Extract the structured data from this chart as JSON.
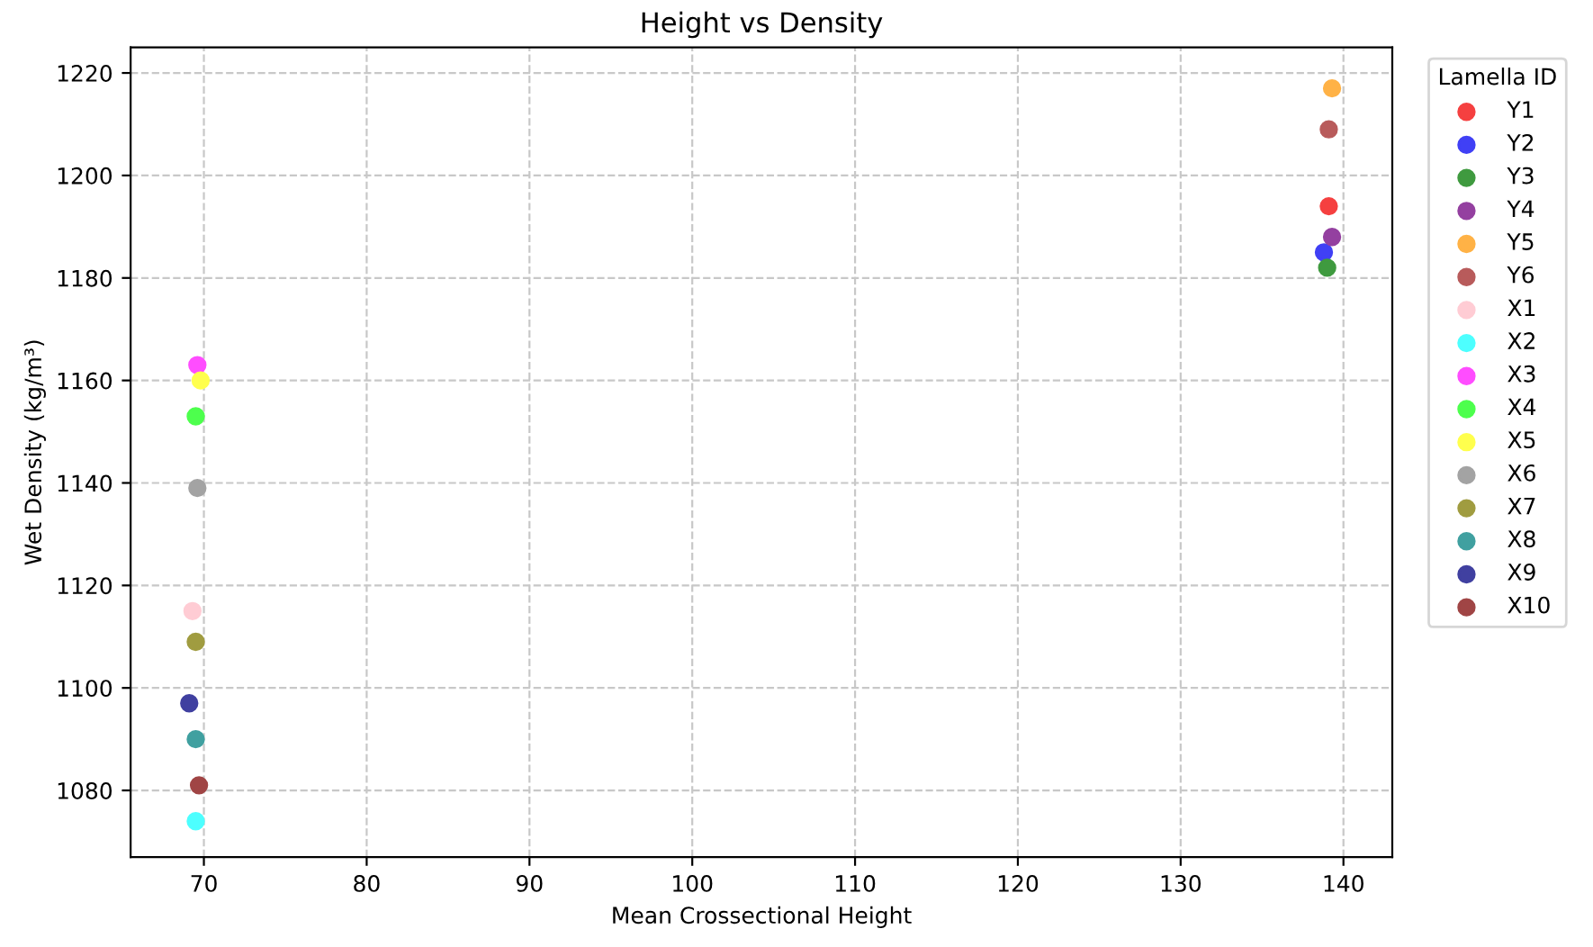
{
  "chart_data": {
    "type": "scatter",
    "title": "Height vs Density",
    "xlabel": "Mean Crossectional Height",
    "ylabel": "Wet Density (kg/m³)",
    "legend_title": "Lamella ID",
    "legend": "top right",
    "grid": true,
    "marker": "circle",
    "xlim": [
      65.5,
      143
    ],
    "xticks": [
      70,
      80,
      90,
      100,
      110,
      120,
      130,
      140
    ],
    "ylim": [
      1067,
      1225
    ],
    "yticks": [
      1080,
      1100,
      1120,
      1140,
      1160,
      1180,
      1200,
      1220
    ],
    "series": [
      {
        "name": "Y1",
        "color": "#f54040",
        "x": [
          139.1
        ],
        "values": [
          1194
        ]
      },
      {
        "name": "Y2",
        "color": "#4040f5",
        "x": [
          138.8
        ],
        "values": [
          1185
        ]
      },
      {
        "name": "Y3",
        "color": "#3f9a3f",
        "x": [
          139.0
        ],
        "values": [
          1182
        ]
      },
      {
        "name": "Y4",
        "color": "#9440a0",
        "x": [
          139.3
        ],
        "values": [
          1188
        ]
      },
      {
        "name": "Y5",
        "color": "#ffb246",
        "x": [
          139.3
        ],
        "values": [
          1217
        ]
      },
      {
        "name": "Y6",
        "color": "#b85b5b",
        "x": [
          139.1
        ],
        "values": [
          1209
        ]
      },
      {
        "name": "X1",
        "color": "#ffccd4",
        "x": [
          69.3
        ],
        "values": [
          1115
        ]
      },
      {
        "name": "X2",
        "color": "#4dffff",
        "x": [
          69.5
        ],
        "values": [
          1074
        ]
      },
      {
        "name": "X3",
        "color": "#ff4dff",
        "x": [
          69.6
        ],
        "values": [
          1163
        ]
      },
      {
        "name": "X4",
        "color": "#4dff4d",
        "x": [
          69.5
        ],
        "values": [
          1153
        ]
      },
      {
        "name": "X5",
        "color": "#ffff4d",
        "x": [
          69.8
        ],
        "values": [
          1160
        ]
      },
      {
        "name": "X6",
        "color": "#a3a3a3",
        "x": [
          69.6
        ],
        "values": [
          1139
        ]
      },
      {
        "name": "X7",
        "color": "#a09c40",
        "x": [
          69.5
        ],
        "values": [
          1109
        ]
      },
      {
        "name": "X8",
        "color": "#40a0a0",
        "x": [
          69.5
        ],
        "values": [
          1090
        ]
      },
      {
        "name": "X9",
        "color": "#4040a0",
        "x": [
          69.1
        ],
        "values": [
          1097
        ]
      },
      {
        "name": "X10",
        "color": "#a04545",
        "x": [
          69.7
        ],
        "values": [
          1081
        ]
      }
    ]
  }
}
